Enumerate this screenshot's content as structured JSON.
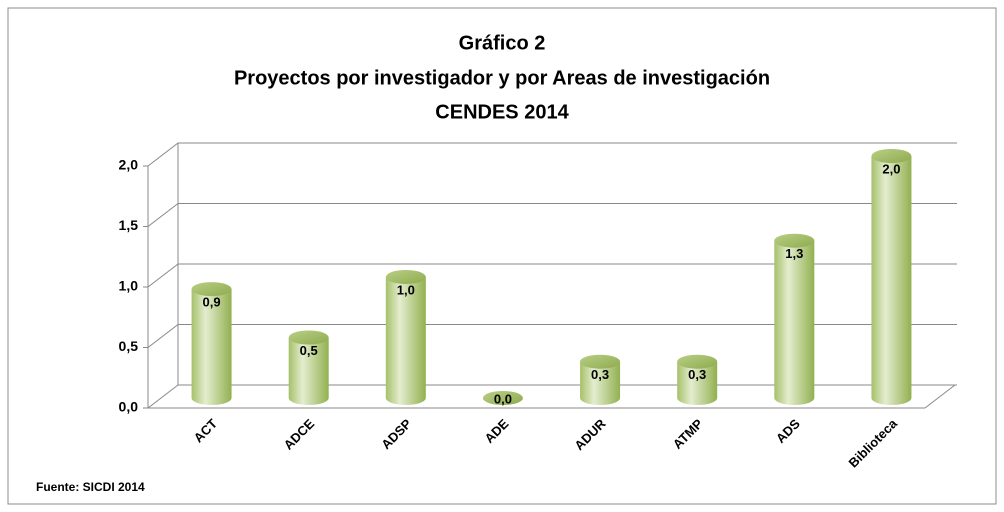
{
  "chart_data": {
    "type": "bar3d",
    "title": [
      "Gráfico 2",
      "Proyectos por investigador y por Areas de investigación",
      "CENDES 2014"
    ],
    "categories": [
      "ACT",
      "ADCE",
      "ADSP",
      "ADE",
      "ADUR",
      "ATMP",
      "ADS",
      "Biblioteca"
    ],
    "values": [
      0.9,
      0.5,
      1.0,
      0.0,
      0.3,
      0.3,
      1.3,
      2.0
    ],
    "value_labels": [
      "0,9",
      "0,5",
      "1,0",
      "0,0",
      "0,3",
      "0,3",
      "1,3",
      "2,0"
    ],
    "color": "#9bbb59",
    "ylim": [
      0,
      2
    ],
    "yticks": [
      {
        "value": 0,
        "label": "0,0"
      },
      {
        "value": 0.5,
        "label": "0,5"
      },
      {
        "value": 1,
        "label": "1,0"
      },
      {
        "value": 1.5,
        "label": "1,5"
      },
      {
        "value": 2,
        "label": "2,0"
      }
    ],
    "grid": true,
    "note": "Fuente: SICDI 2014"
  }
}
